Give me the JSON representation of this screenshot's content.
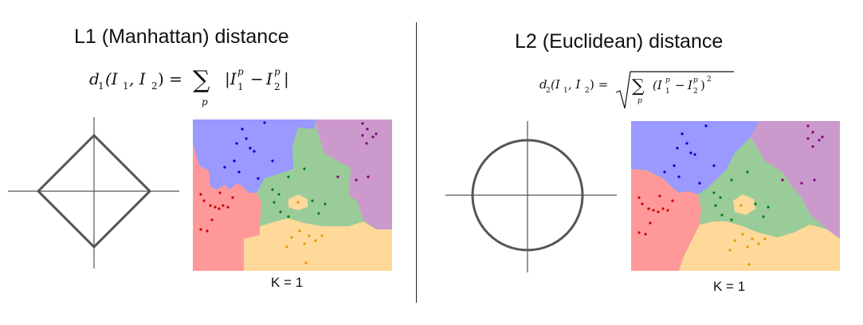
{
  "left": {
    "title": "L1 (Manhattan) distance",
    "formula": {
      "lhs": "d",
      "sub": "1",
      "args": "(I",
      "sum": "∑",
      "sum_index": "p",
      "abs_open": "|I",
      "minus": "−",
      "abs_close": "|",
      "sup": "p",
      "sub1": "1",
      "sub2": "2",
      "comma": ", I",
      "close": ") ="
    },
    "k_label": "K = 1"
  },
  "right": {
    "title": "L2 (Euclidean) distance",
    "formula": {
      "lhs": "d",
      "sub": "2",
      "args": "(I",
      "sum": "∑",
      "sum_index": "p",
      "open": "(I",
      "minus": "−",
      "close_paren": ")",
      "square": "2",
      "sup": "p",
      "sub1": "1",
      "sub2": "2",
      "comma": ", I",
      "close": ") ="
    },
    "k_label": "K = 1"
  },
  "colors": {
    "blue_region": "#9999ff",
    "purple_region": "#cc99cc",
    "green_region": "#99cc99",
    "red_region": "#ff9999",
    "orange_region": "#ffd999",
    "blue_point": "#0000cc",
    "purple_point": "#800080",
    "green_point": "#008000",
    "red_point": "#cc0000",
    "orange_point": "#e69500",
    "shape_stroke": "#555555"
  }
}
